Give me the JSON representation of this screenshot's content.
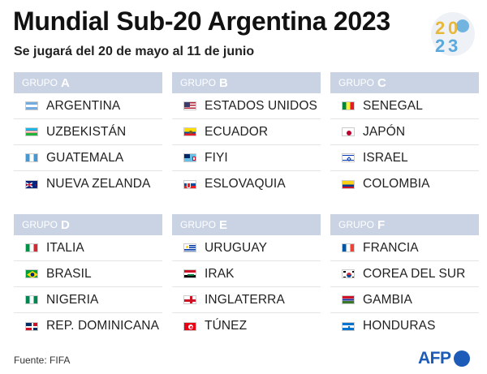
{
  "title": "Mundial Sub-20 Argentina 2023",
  "subtitle": "Se jugará del 20 de mayo al 11 de junio",
  "logo_digits": [
    "2",
    "0",
    "2",
    "3"
  ],
  "group_word": "GRUPO",
  "groups": [
    {
      "letter": "A",
      "teams": [
        {
          "name": "ARGENTINA",
          "flag": "argentina"
        },
        {
          "name": "UZBEKISTÁN",
          "flag": "uzbekistan"
        },
        {
          "name": "GUATEMALA",
          "flag": "guatemala"
        },
        {
          "name": "NUEVA ZELANDA",
          "flag": "new-zealand"
        }
      ]
    },
    {
      "letter": "B",
      "teams": [
        {
          "name": "ESTADOS UNIDOS",
          "flag": "usa"
        },
        {
          "name": "ECUADOR",
          "flag": "ecuador"
        },
        {
          "name": "FIYI",
          "flag": "fiji"
        },
        {
          "name": "ESLOVAQUIA",
          "flag": "slovakia"
        }
      ]
    },
    {
      "letter": "C",
      "teams": [
        {
          "name": "SENEGAL",
          "flag": "senegal"
        },
        {
          "name": "JAPÓN",
          "flag": "japan"
        },
        {
          "name": "ISRAEL",
          "flag": "israel"
        },
        {
          "name": "COLOMBIA",
          "flag": "colombia"
        }
      ]
    },
    {
      "letter": "D",
      "teams": [
        {
          "name": "ITALIA",
          "flag": "italy"
        },
        {
          "name": "BRASIL",
          "flag": "brazil"
        },
        {
          "name": "NIGERIA",
          "flag": "nigeria"
        },
        {
          "name": "REP. DOMINICANA",
          "flag": "dominican-republic"
        }
      ]
    },
    {
      "letter": "E",
      "teams": [
        {
          "name": "URUGUAY",
          "flag": "uruguay"
        },
        {
          "name": "IRAK",
          "flag": "iraq"
        },
        {
          "name": "INGLATERRA",
          "flag": "england"
        },
        {
          "name": "TÚNEZ",
          "flag": "tunisia"
        }
      ]
    },
    {
      "letter": "F",
      "teams": [
        {
          "name": "FRANCIA",
          "flag": "france"
        },
        {
          "name": "COREA DEL SUR",
          "flag": "south-korea"
        },
        {
          "name": "GAMBIA",
          "flag": "gambia"
        },
        {
          "name": "HONDURAS",
          "flag": "honduras"
        }
      ]
    }
  ],
  "source": "Fuente: FIFA",
  "agency": "AFP",
  "colors": {
    "header_bg": "#c9d3e4",
    "afp_blue": "#1c5bb8",
    "logo_gold": "#e8b83a",
    "logo_blue": "#5aa9dc"
  }
}
